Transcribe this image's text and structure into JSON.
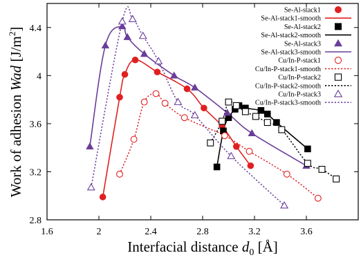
{
  "chart_data": {
    "type": "line",
    "xlabel": "Interfacial distance ",
    "xlabel_var": "d",
    "xlabel_sub": "0",
    "xlabel_unit": " [Å]",
    "ylabel": "Work of adhesion ",
    "ylabel_var": "Wad",
    "ylabel_unit": " [J/m",
    "ylabel_unit_sup": "2",
    "ylabel_unit_end": "]",
    "xlim": [
      1.6,
      4.0
    ],
    "ylim": [
      2.8,
      4.6
    ],
    "xticks": [
      1.6,
      2.0,
      2.4,
      2.8,
      3.2,
      3.6
    ],
    "xtick_labels": [
      "1.6",
      "2",
      "2.4",
      "2.8",
      "3.2",
      "3.6"
    ],
    "yticks": [
      2.8,
      3.2,
      3.6,
      4.0,
      4.4
    ],
    "ytick_labels": [
      "2.8",
      "3.2",
      "3.6",
      "4",
      "4.4"
    ],
    "grid": false,
    "legend_position": "top-right",
    "series": [
      {
        "name": "Se-Al-stack1",
        "kind": "markers",
        "marker": "circle",
        "filled": true,
        "color": "#e02020",
        "x": [
          2.03,
          2.16,
          2.2,
          2.28,
          2.45,
          2.68,
          2.81,
          2.95,
          3.06,
          3.17
        ],
        "y": [
          2.99,
          3.82,
          4.01,
          4.13,
          4.03,
          3.89,
          3.73,
          3.58,
          3.41,
          3.25
        ]
      },
      {
        "name": "Se-Al-stack1-smooth",
        "kind": "line",
        "dash": "solid",
        "color": "#e02020",
        "x": [
          2.03,
          2.16,
          2.2,
          2.28,
          2.45,
          2.68,
          2.81,
          2.95,
          3.06,
          3.17
        ],
        "y": [
          2.99,
          3.82,
          4.01,
          4.13,
          4.03,
          3.89,
          3.73,
          3.58,
          3.41,
          3.25
        ]
      },
      {
        "name": "Se-Al-stack2",
        "kind": "markers",
        "marker": "square",
        "filled": true,
        "color": "#000000",
        "x": [
          2.91,
          2.96,
          3.0,
          3.05,
          3.08,
          3.13,
          3.25,
          3.3,
          3.37,
          3.61
        ],
        "y": [
          3.24,
          3.54,
          3.65,
          3.72,
          3.75,
          3.73,
          3.71,
          3.68,
          3.61,
          3.39
        ]
      },
      {
        "name": "Se-Al-stack2-smooth",
        "kind": "line",
        "dash": "solid",
        "color": "#000000",
        "x": [
          2.91,
          2.96,
          3.0,
          3.05,
          3.08,
          3.13,
          3.25,
          3.3,
          3.37,
          3.61
        ],
        "y": [
          3.24,
          3.54,
          3.65,
          3.72,
          3.75,
          3.73,
          3.71,
          3.68,
          3.61,
          3.39
        ]
      },
      {
        "name": "Se-Al-stack3",
        "kind": "markers",
        "marker": "triangle",
        "filled": true,
        "color": "#6a3d9a",
        "x": [
          1.93,
          2.05,
          2.18,
          2.22,
          2.35,
          2.58,
          2.74,
          2.99,
          3.18,
          3.6
        ],
        "y": [
          3.41,
          4.25,
          4.41,
          4.32,
          4.18,
          4.0,
          3.9,
          3.69,
          3.52,
          3.25
        ]
      },
      {
        "name": "Se-Al-stack3-smooth",
        "kind": "line",
        "dash": "solid",
        "color": "#6a3d9a",
        "x": [
          1.93,
          2.05,
          2.18,
          2.22,
          2.35,
          2.58,
          2.74,
          2.99,
          3.18,
          3.6
        ],
        "y": [
          3.41,
          4.25,
          4.41,
          4.32,
          4.18,
          4.0,
          3.9,
          3.69,
          3.52,
          3.25
        ]
      },
      {
        "name": "Cu/In-P-stack1",
        "kind": "markers",
        "marker": "circle",
        "filled": false,
        "color": "#e02020",
        "x": [
          2.16,
          2.27,
          2.35,
          2.44,
          2.51,
          2.66,
          2.97,
          3.16,
          3.45,
          3.69
        ],
        "y": [
          3.18,
          3.47,
          3.78,
          3.85,
          3.77,
          3.65,
          3.5,
          3.37,
          3.18,
          2.98
        ]
      },
      {
        "name": "Cu/In-P-stack1-smooth",
        "kind": "line",
        "dash": "dotted",
        "color": "#e02020",
        "x": [
          2.16,
          2.27,
          2.35,
          2.44,
          2.51,
          2.66,
          2.97,
          3.16,
          3.45,
          3.69
        ],
        "y": [
          3.18,
          3.47,
          3.78,
          3.85,
          3.77,
          3.65,
          3.5,
          3.37,
          3.18,
          2.98
        ]
      },
      {
        "name": "Cu/In-P-stack2",
        "kind": "markers",
        "marker": "square",
        "filled": false,
        "color": "#000000",
        "x": [
          2.86,
          2.95,
          3.0,
          3.06,
          3.13,
          3.21,
          3.3,
          3.41,
          3.61,
          3.72,
          3.83
        ],
        "y": [
          3.44,
          3.62,
          3.78,
          3.75,
          3.7,
          3.66,
          3.61,
          3.55,
          3.27,
          3.22,
          3.14
        ]
      },
      {
        "name": "Cu/In-P-stack2-smooth",
        "kind": "line",
        "dash": "dotted",
        "color": "#000000",
        "x": [
          2.86,
          2.95,
          3.0,
          3.06,
          3.13,
          3.21,
          3.3,
          3.41,
          3.61,
          3.72,
          3.83
        ],
        "y": [
          3.44,
          3.62,
          3.78,
          3.75,
          3.7,
          3.66,
          3.61,
          3.55,
          3.27,
          3.22,
          3.14
        ]
      },
      {
        "name": "Cu/In-P-stack3",
        "kind": "markers",
        "marker": "triangle",
        "filled": false,
        "color": "#6a3d9a",
        "x": [
          1.94,
          2.18,
          2.26,
          2.34,
          2.46,
          2.61,
          2.74,
          3.02,
          3.43
        ],
        "y": [
          3.07,
          4.45,
          4.47,
          4.33,
          4.12,
          3.78,
          3.67,
          3.33,
          2.92
        ]
      },
      {
        "name": "Cu/In-P-stack3-smooth",
        "kind": "line",
        "dash": "dotted",
        "color": "#6a3d9a",
        "x": [
          1.94,
          2.18,
          2.26,
          2.34,
          2.46,
          2.61,
          2.74,
          3.02,
          3.43
        ],
        "y": [
          3.07,
          4.45,
          4.47,
          4.33,
          4.12,
          3.78,
          3.67,
          3.33,
          2.92
        ]
      }
    ]
  }
}
